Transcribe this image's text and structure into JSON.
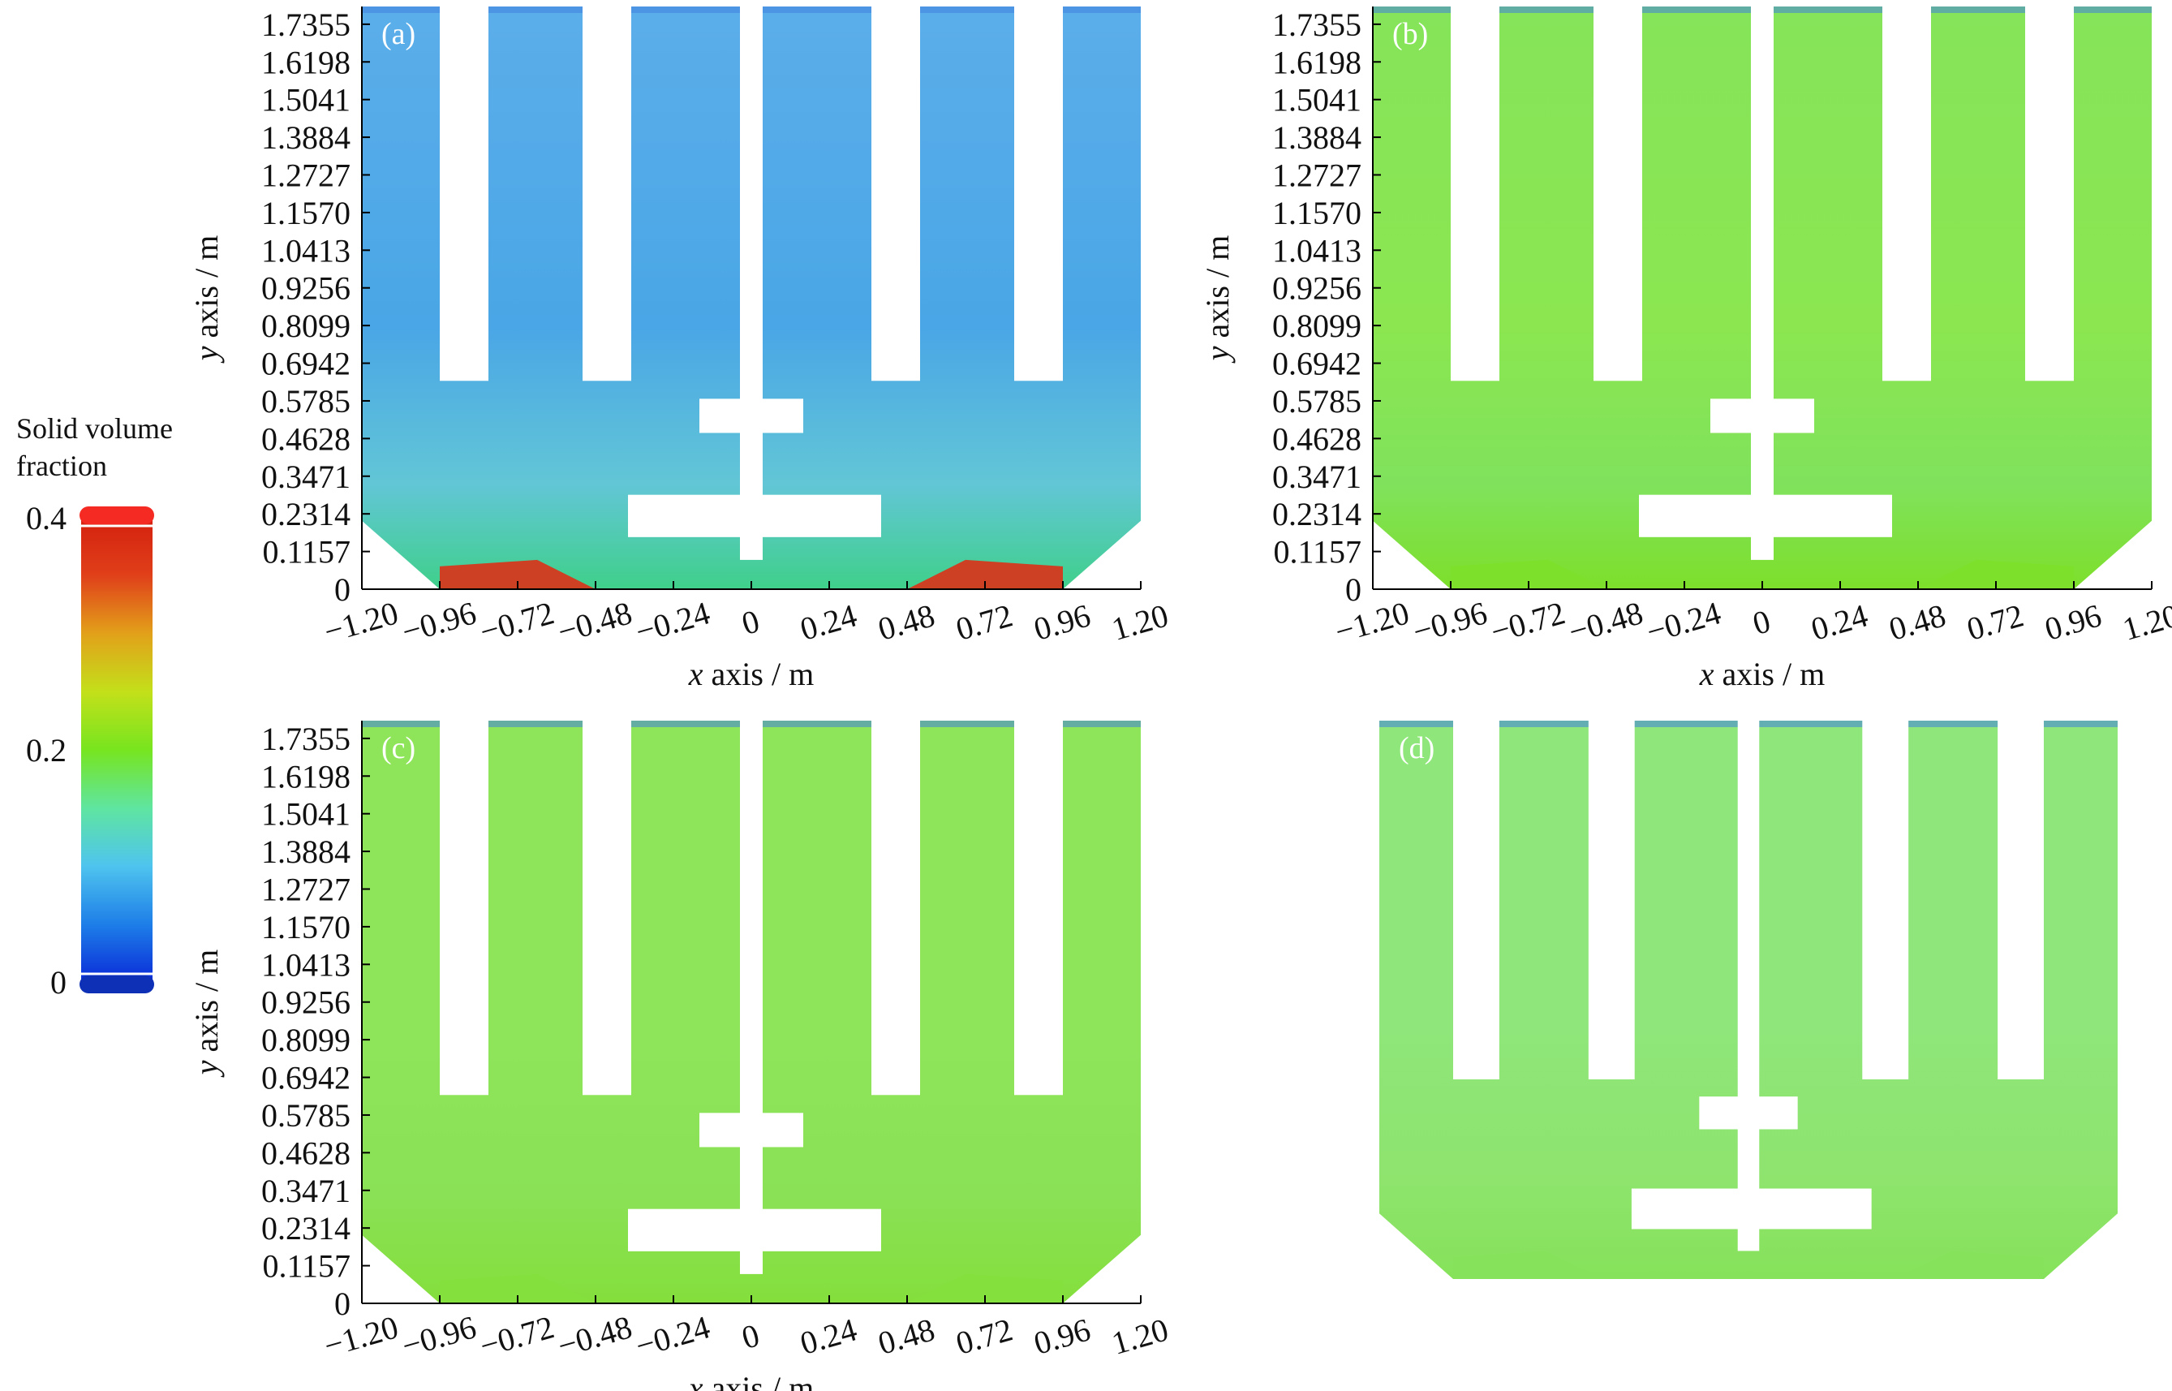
{
  "colorbar": {
    "title_line1": "Solid volume",
    "title_line2": "fraction",
    "ticks": [
      "0.4",
      "0.2",
      "0"
    ],
    "range": [
      0,
      0.4
    ],
    "stops": [
      "#0a2bd8",
      "#1e7fe8",
      "#4fc4ee",
      "#5fe5a0",
      "#77e51f",
      "#c3e01a",
      "#e2a11a",
      "#e0401a",
      "#d4200e"
    ],
    "end_cap_max_color": "#f52a22",
    "end_cap_min_color": "#0d30b6"
  },
  "chart_data": [
    {
      "type": "heatmap",
      "panel": "(a)",
      "xlabel_italic": "x",
      "xlabel_rest": " axis / m",
      "ylabel_italic": "y",
      "ylabel_rest": " axis / m",
      "xticks": [
        "−1.20",
        "−0.96",
        "−0.72",
        "−0.48",
        "−0.24",
        "0",
        "0.24",
        "0.48",
        "0.72",
        "0.96",
        "1.20"
      ],
      "yticks": [
        "0",
        "0.1157",
        "0.2314",
        "0.3471",
        "0.4628",
        "0.5785",
        "0.6942",
        "0.8099",
        "0.9256",
        "1.0413",
        "1.1570",
        "1.2727",
        "1.3884",
        "1.5041",
        "1.6198",
        "1.7355"
      ],
      "xlim": [
        -1.2,
        1.2
      ],
      "ylim": [
        0,
        1.79
      ],
      "colorbar_range": [
        0,
        0.4
      ],
      "field": "solid volume fraction",
      "bulk_color": "#4aa6e6",
      "upper_color": "#5baee9",
      "lower_color": "#62c6d6",
      "wall_band_color": "#3fd08a",
      "peak_color": "#d9341a",
      "approx_upper_value": 0.09,
      "approx_bottom_peak_value": 0.4
    },
    {
      "type": "heatmap",
      "panel": "(b)",
      "xlabel_italic": "x",
      "xlabel_rest": " axis / m",
      "ylabel_italic": "y",
      "ylabel_rest": " axis / m",
      "xticks": [
        "−1.20",
        "−0.96",
        "−0.72",
        "−0.48",
        "−0.24",
        "0",
        "0.24",
        "0.48",
        "0.72",
        "0.96",
        "1.20"
      ],
      "yticks": [
        "0",
        "0.1157",
        "0.2314",
        "0.3471",
        "0.4628",
        "0.5785",
        "0.6942",
        "0.8099",
        "0.9256",
        "1.0413",
        "1.1570",
        "1.2727",
        "1.3884",
        "1.5041",
        "1.6198",
        "1.7355"
      ],
      "xlim": [
        -1.2,
        1.2
      ],
      "ylim": [
        0,
        1.79
      ],
      "colorbar_range": [
        0,
        0.4
      ],
      "field": "solid volume fraction",
      "bulk_color": "#8be650",
      "upper_color": "#86e45a",
      "lower_color": "#80e25c",
      "wall_band_color": "#7ddf2a",
      "peak_color": "#7ddf2a",
      "approx_upper_value": 0.2,
      "approx_bottom_peak_value": 0.22
    },
    {
      "type": "heatmap",
      "panel": "(c)",
      "xlabel_italic": "x",
      "xlabel_rest": " axis / m",
      "ylabel_italic": "y",
      "ylabel_rest": " axis / m",
      "xticks": [
        "−1.20",
        "−0.96",
        "−0.72",
        "−0.48",
        "−0.24",
        "0",
        "0.24",
        "0.48",
        "0.72",
        "0.96",
        "1.20"
      ],
      "yticks": [
        "0",
        "0.1157",
        "0.2314",
        "0.3471",
        "0.4628",
        "0.5785",
        "0.6942",
        "0.8099",
        "0.9256",
        "1.0413",
        "1.1570",
        "1.2727",
        "1.3884",
        "1.5041",
        "1.6198",
        "1.7355"
      ],
      "xlim": [
        -1.2,
        1.2
      ],
      "ylim": [
        0,
        1.79
      ],
      "colorbar_range": [
        0,
        0.4
      ],
      "field": "solid volume fraction",
      "bulk_color": "#8fe55a",
      "upper_color": "#8fe55a",
      "lower_color": "#8ae155",
      "wall_band_color": "#84df3c",
      "peak_color": "#84df3c",
      "approx_upper_value": 0.21,
      "approx_bottom_peak_value": 0.22
    },
    {
      "type": "heatmap",
      "panel": "(d)",
      "xlim": [
        -1.2,
        1.2
      ],
      "ylim": [
        0,
        1.79
      ],
      "colorbar_range": [
        0,
        0.4
      ],
      "field": "solid volume fraction",
      "bulk_color": "#8fe67a",
      "upper_color": "#8fe67a",
      "lower_color": "#8ee46d",
      "wall_band_color": "#86e25a",
      "peak_color": "#86e25a",
      "approx_upper_value": 0.2,
      "approx_bottom_peak_value": 0.21
    }
  ]
}
